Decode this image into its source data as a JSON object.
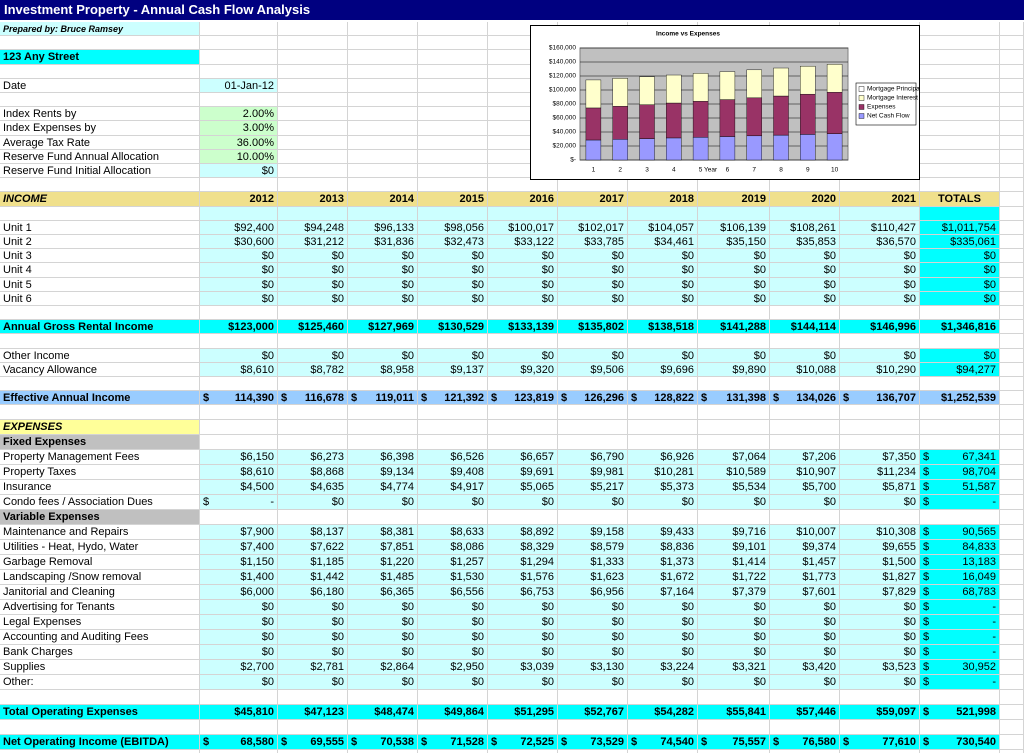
{
  "sheet": {
    "title": "Investment Property - Annual Cash Flow Analysis",
    "prepared_by": "Prepared by: Bruce Ramsey",
    "address": "123 Any Street",
    "date": {
      "label": "Date",
      "value": "01-Jan-12"
    },
    "assumptions": [
      {
        "label": "Index Rents by",
        "value": "2.00%"
      },
      {
        "label": "Index Expenses by",
        "value": "3.00%"
      },
      {
        "label": "Average Tax Rate",
        "value": "36.00%"
      },
      {
        "label": "Reserve Fund Annual Allocation",
        "value": "10.00%"
      },
      {
        "label": "Reserve Fund Initial Allocation",
        "value": "$0"
      }
    ],
    "header": {
      "label": "INCOME",
      "columns": [
        "2012",
        "2013",
        "2014",
        "2015",
        "2016",
        "2017",
        "2018",
        "2019",
        "2020",
        "2021",
        "TOTALS"
      ]
    },
    "units": [
      {
        "label": "Unit 1",
        "cells": [
          "$92,400",
          "$94,248",
          "$96,133",
          "$98,056",
          "$100,017",
          "$102,017",
          "$104,057",
          "$106,139",
          "$108,261",
          "$110,427",
          "$1,011,754"
        ]
      },
      {
        "label": "Unit 2",
        "cells": [
          "$30,600",
          "$31,212",
          "$31,836",
          "$32,473",
          "$33,122",
          "$33,785",
          "$34,461",
          "$35,150",
          "$35,853",
          "$36,570",
          "$335,061"
        ]
      },
      {
        "label": "Unit 3",
        "cells": [
          "$0",
          "$0",
          "$0",
          "$0",
          "$0",
          "$0",
          "$0",
          "$0",
          "$0",
          "$0",
          "$0"
        ]
      },
      {
        "label": "Unit 4",
        "cells": [
          "$0",
          "$0",
          "$0",
          "$0",
          "$0",
          "$0",
          "$0",
          "$0",
          "$0",
          "$0",
          "$0"
        ]
      },
      {
        "label": "Unit 5",
        "cells": [
          "$0",
          "$0",
          "$0",
          "$0",
          "$0",
          "$0",
          "$0",
          "$0",
          "$0",
          "$0",
          "$0"
        ]
      },
      {
        "label": "Unit 6",
        "cells": [
          "$0",
          "$0",
          "$0",
          "$0",
          "$0",
          "$0",
          "$0",
          "$0",
          "$0",
          "$0",
          "$0"
        ]
      }
    ],
    "gross": {
      "label": "Annual Gross Rental Income",
      "cells": [
        "$123,000",
        "$125,460",
        "$127,969",
        "$130,529",
        "$133,139",
        "$135,802",
        "$138,518",
        "$141,288",
        "$144,114",
        "$146,996",
        "$1,346,816"
      ]
    },
    "other": [
      {
        "label": "Other Income",
        "cells": [
          "$0",
          "$0",
          "$0",
          "$0",
          "$0",
          "$0",
          "$0",
          "$0",
          "$0",
          "$0",
          "$0"
        ]
      },
      {
        "label": "Vacancy Allowance",
        "cells": [
          "$8,610",
          "$8,782",
          "$8,958",
          "$9,137",
          "$9,320",
          "$9,506",
          "$9,696",
          "$9,890",
          "$10,088",
          "$10,290",
          "$94,277"
        ]
      }
    ],
    "effective": {
      "label": "Effective Annual Income",
      "cells": [
        {
          "cur": "$",
          "amt": "114,390"
        },
        {
          "cur": "$",
          "amt": "116,678"
        },
        {
          "cur": "$",
          "amt": "119,011"
        },
        {
          "cur": "$",
          "amt": "121,392"
        },
        {
          "cur": "$",
          "amt": "123,819"
        },
        {
          "cur": "$",
          "amt": "126,296"
        },
        {
          "cur": "$",
          "amt": "128,822"
        },
        {
          "cur": "$",
          "amt": "131,398"
        },
        {
          "cur": "$",
          "amt": "134,026"
        },
        {
          "cur": "$",
          "amt": "136,707"
        },
        "$1,252,539"
      ]
    },
    "expenses_label": "EXPENSES",
    "fixed_label": "Fixed Expenses",
    "fixed": [
      {
        "label": "Property Management Fees",
        "cells": [
          "$6,150",
          "$6,273",
          "$6,398",
          "$6,526",
          "$6,657",
          "$6,790",
          "$6,926",
          "$7,064",
          "$7,206",
          "$7,350",
          {
            "cur": "$",
            "amt": "67,341"
          }
        ]
      },
      {
        "label": "Property Taxes",
        "cells": [
          "$8,610",
          "$8,868",
          "$9,134",
          "$9,408",
          "$9,691",
          "$9,981",
          "$10,281",
          "$10,589",
          "$10,907",
          "$11,234",
          {
            "cur": "$",
            "amt": "98,704"
          }
        ]
      },
      {
        "label": "Insurance",
        "cells": [
          "$4,500",
          "$4,635",
          "$4,774",
          "$4,917",
          "$5,065",
          "$5,217",
          "$5,373",
          "$5,534",
          "$5,700",
          "$5,871",
          {
            "cur": "$",
            "amt": "51,587"
          }
        ]
      },
      {
        "label": "Condo fees / Association Dues",
        "cells": [
          {
            "cur": "$",
            "amt": "-"
          },
          "$0",
          "$0",
          "$0",
          "$0",
          "$0",
          "$0",
          "$0",
          "$0",
          "$0",
          {
            "cur": "$",
            "amt": "-"
          }
        ]
      }
    ],
    "variable_label": "Variable Expenses",
    "variable": [
      {
        "label": "Maintenance and Repairs",
        "cells": [
          "$7,900",
          "$8,137",
          "$8,381",
          "$8,633",
          "$8,892",
          "$9,158",
          "$9,433",
          "$9,716",
          "$10,007",
          "$10,308",
          {
            "cur": "$",
            "amt": "90,565"
          }
        ]
      },
      {
        "label": "Utilities - Heat, Hydo, Water",
        "cells": [
          "$7,400",
          "$7,622",
          "$7,851",
          "$8,086",
          "$8,329",
          "$8,579",
          "$8,836",
          "$9,101",
          "$9,374",
          "$9,655",
          {
            "cur": "$",
            "amt": "84,833"
          }
        ]
      },
      {
        "label": "Garbage Removal",
        "cells": [
          "$1,150",
          "$1,185",
          "$1,220",
          "$1,257",
          "$1,294",
          "$1,333",
          "$1,373",
          "$1,414",
          "$1,457",
          "$1,500",
          {
            "cur": "$",
            "amt": "13,183"
          }
        ]
      },
      {
        "label": "Landscaping /Snow removal",
        "cells": [
          "$1,400",
          "$1,442",
          "$1,485",
          "$1,530",
          "$1,576",
          "$1,623",
          "$1,672",
          "$1,722",
          "$1,773",
          "$1,827",
          {
            "cur": "$",
            "amt": "16,049"
          }
        ]
      },
      {
        "label": "Janitorial and Cleaning",
        "cells": [
          "$6,000",
          "$6,180",
          "$6,365",
          "$6,556",
          "$6,753",
          "$6,956",
          "$7,164",
          "$7,379",
          "$7,601",
          "$7,829",
          {
            "cur": "$",
            "amt": "68,783"
          }
        ]
      },
      {
        "label": "Advertising for Tenants",
        "cells": [
          "$0",
          "$0",
          "$0",
          "$0",
          "$0",
          "$0",
          "$0",
          "$0",
          "$0",
          "$0",
          {
            "cur": "$",
            "amt": "-"
          }
        ]
      },
      {
        "label": "Legal Expenses",
        "cells": [
          "$0",
          "$0",
          "$0",
          "$0",
          "$0",
          "$0",
          "$0",
          "$0",
          "$0",
          "$0",
          {
            "cur": "$",
            "amt": "-"
          }
        ]
      },
      {
        "label": "Accounting and Auditing Fees",
        "cells": [
          "$0",
          "$0",
          "$0",
          "$0",
          "$0",
          "$0",
          "$0",
          "$0",
          "$0",
          "$0",
          {
            "cur": "$",
            "amt": "-"
          }
        ]
      },
      {
        "label": "Bank Charges",
        "cells": [
          "$0",
          "$0",
          "$0",
          "$0",
          "$0",
          "$0",
          "$0",
          "$0",
          "$0",
          "$0",
          {
            "cur": "$",
            "amt": "-"
          }
        ]
      },
      {
        "label": "Supplies",
        "cells": [
          "$2,700",
          "$2,781",
          "$2,864",
          "$2,950",
          "$3,039",
          "$3,130",
          "$3,224",
          "$3,321",
          "$3,420",
          "$3,523",
          {
            "cur": "$",
            "amt": "30,952"
          }
        ]
      },
      {
        "label": "Other:",
        "cells": [
          "$0",
          "$0",
          "$0",
          "$0",
          "$0",
          "$0",
          "$0",
          "$0",
          "$0",
          "$0",
          {
            "cur": "$",
            "amt": "-"
          }
        ]
      }
    ],
    "total_expenses": {
      "label": "Total Operating Expenses",
      "cells": [
        "$45,810",
        "$47,123",
        "$48,474",
        "$49,864",
        "$51,295",
        "$52,767",
        "$54,282",
        "$55,841",
        "$57,446",
        "$59,097",
        {
          "cur": "$",
          "amt": "521,998"
        }
      ]
    },
    "noi": {
      "label": "Net Operating Income (EBITDA)",
      "cells": [
        {
          "cur": "$",
          "amt": "68,580"
        },
        {
          "cur": "$",
          "amt": "69,555"
        },
        {
          "cur": "$",
          "amt": "70,538"
        },
        {
          "cur": "$",
          "amt": "71,528"
        },
        {
          "cur": "$",
          "amt": "72,525"
        },
        {
          "cur": "$",
          "amt": "73,529"
        },
        {
          "cur": "$",
          "amt": "74,540"
        },
        {
          "cur": "$",
          "amt": "75,557"
        },
        {
          "cur": "$",
          "amt": "76,580"
        },
        {
          "cur": "$",
          "amt": "77,610"
        },
        {
          "cur": "$",
          "amt": "730,540"
        }
      ]
    }
  },
  "chart_data": {
    "type": "bar",
    "stacked": true,
    "title": "Income vs Expenses",
    "x_label": "Year",
    "categories": [
      1,
      2,
      3,
      4,
      5,
      6,
      7,
      8,
      9,
      10
    ],
    "series": [
      {
        "name": "Net Cash Flow",
        "color": "#9999ff",
        "values": [
          28580,
          29555,
          30538,
          31528,
          32525,
          33529,
          34540,
          35557,
          36580,
          37610
        ]
      },
      {
        "name": "Expenses",
        "color": "#993366",
        "values": [
          45810,
          47123,
          48474,
          49864,
          51295,
          52767,
          54282,
          55841,
          57446,
          59097
        ]
      },
      {
        "name": "Mortgage Interest",
        "color": "#ffffcc",
        "values": [
          40000,
          40000,
          40000,
          40000,
          40000,
          40000,
          40000,
          40000,
          40000,
          40000
        ]
      },
      {
        "name": "Mortgage Principal",
        "color": "#ffffff",
        "values": [
          0,
          0,
          0,
          0,
          0,
          0,
          0,
          0,
          0,
          0
        ]
      }
    ],
    "ylim": [
      0,
      160000
    ],
    "yticks": [
      {
        "value": 0,
        "label": "$-"
      },
      {
        "value": 20000,
        "label": "$20,000"
      },
      {
        "value": 40000,
        "label": "$40,000"
      },
      {
        "value": 60000,
        "label": "$60,000"
      },
      {
        "value": 80000,
        "label": "$80,000"
      },
      {
        "value": 100000,
        "label": "$100,000"
      },
      {
        "value": 120000,
        "label": "$120,000"
      },
      {
        "value": 140000,
        "label": "$140,000"
      },
      {
        "value": 160000,
        "label": "$160,000"
      }
    ],
    "grid": true,
    "legend": "right"
  }
}
